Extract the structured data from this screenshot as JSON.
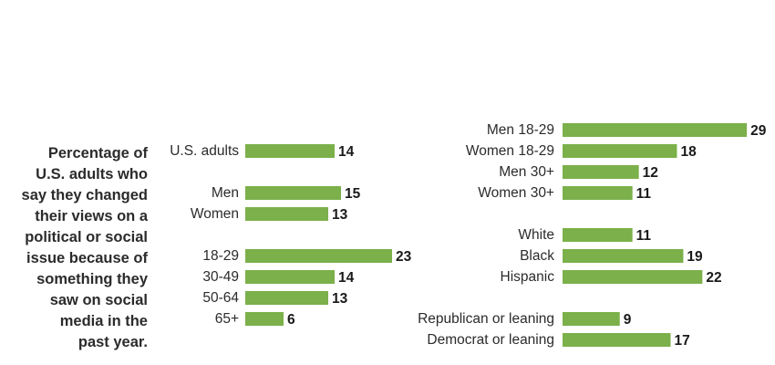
{
  "description_lines": [
    "Percentage of",
    "U.S. adults who",
    "say they changed",
    "their views on a",
    "political or social",
    "issue because of",
    "something they",
    "saw on social",
    "media in the",
    "past year."
  ],
  "colors": {
    "bar": "#7bb04a",
    "text": "#2b2b2b"
  },
  "chart_data": {
    "type": "bar",
    "orientation": "horizontal",
    "title": "Percentage of U.S. adults who say they changed their views on a political or social issue because of something they saw on social media in the past year.",
    "panels": [
      {
        "name": "left",
        "groups": [
          {
            "categories": [
              "U.S. adults"
            ],
            "values": [
              14
            ]
          },
          {
            "categories": [
              "Men",
              "Women"
            ],
            "values": [
              15,
              13
            ]
          },
          {
            "categories": [
              "18-29",
              "30-49",
              "50-64",
              "65+"
            ],
            "values": [
              23,
              14,
              13,
              6
            ]
          }
        ]
      },
      {
        "name": "right",
        "groups": [
          {
            "categories": [
              "Men 18-29",
              "Women 18-29",
              "Men 30+",
              "Women 30+"
            ],
            "values": [
              29,
              18,
              12,
              11
            ]
          },
          {
            "categories": [
              "White",
              "Black",
              "Hispanic"
            ],
            "values": [
              11,
              19,
              22
            ]
          },
          {
            "categories": [
              "Republican or leaning",
              "Democrat or leaning"
            ],
            "values": [
              9,
              17
            ]
          }
        ]
      }
    ]
  }
}
